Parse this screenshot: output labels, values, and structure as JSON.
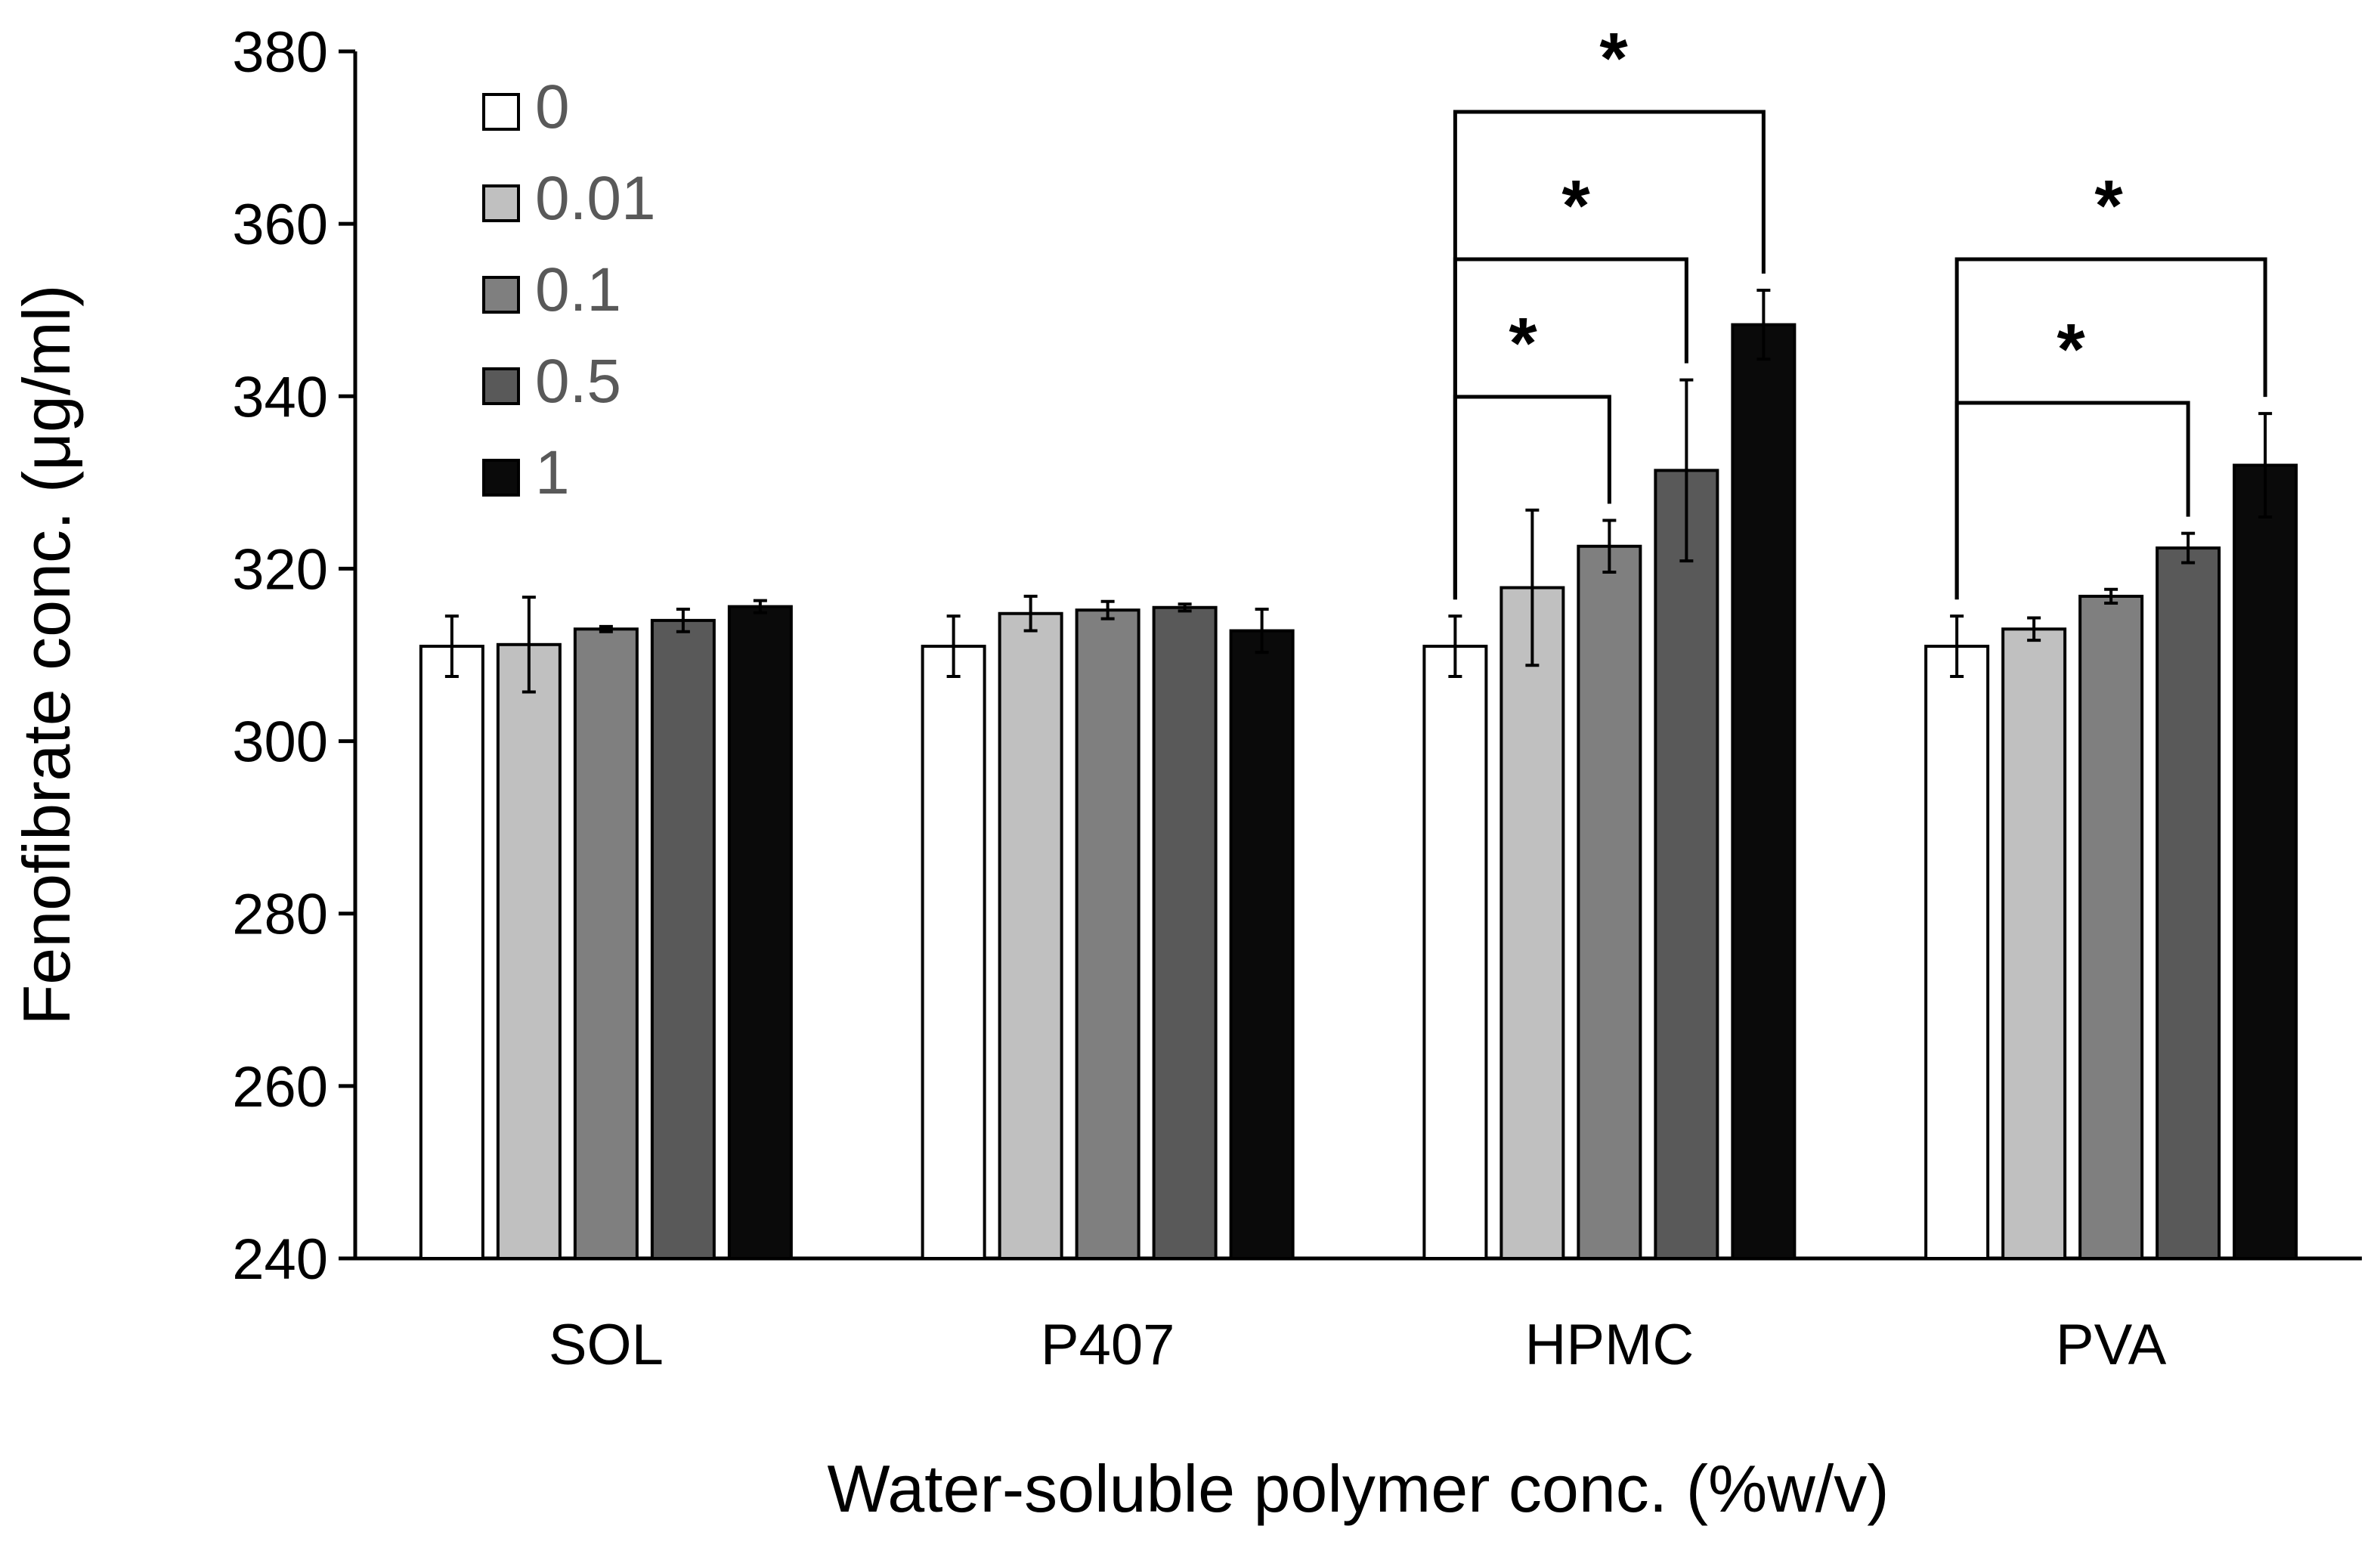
{
  "chart_data": {
    "type": "bar",
    "title": "",
    "xlabel": "Water-soluble polymer conc. (%w/v)",
    "ylabel": "Fenofibrate conc. (μg/ml)",
    "ylim": [
      240,
      380
    ],
    "yticks": [
      240,
      260,
      280,
      300,
      320,
      340,
      360,
      380
    ],
    "grid": false,
    "legend_position": "top-left",
    "categories": [
      "SOL",
      "P407",
      "HPMC",
      "PVA"
    ],
    "series": [
      {
        "name": "0",
        "color": "#ffffff",
        "values": [
          311,
          311,
          311,
          311
        ],
        "errors": [
          3.5,
          3.5,
          3.5,
          3.5
        ]
      },
      {
        "name": "0.01",
        "color": "#c0c0c0",
        "values": [
          311.2,
          314.8,
          317.8,
          313.0
        ],
        "errors": [
          5.5,
          2.0,
          9.0,
          1.3
        ]
      },
      {
        "name": "0.1",
        "color": "#7f7f7f",
        "values": [
          313.0,
          315.2,
          322.6,
          316.8
        ],
        "errors": [
          0.3,
          1.0,
          3.0,
          0.8
        ]
      },
      {
        "name": "0.5",
        "color": "#595959",
        "values": [
          314.0,
          315.5,
          331.4,
          322.4
        ],
        "errors": [
          1.3,
          0.4,
          10.5,
          1.7
        ]
      },
      {
        "name": "1",
        "color": "#0a0a0a",
        "values": [
          315.6,
          312.8,
          348.3,
          332.0
        ],
        "errors": [
          0.7,
          2.5,
          4.0,
          6.0
        ]
      }
    ],
    "significance": [
      {
        "category": "HPMC",
        "from": "0",
        "to": "0.1",
        "label": "*"
      },
      {
        "category": "HPMC",
        "from": "0",
        "to": "0.5",
        "label": "*"
      },
      {
        "category": "HPMC",
        "from": "0",
        "to": "1",
        "label": "*"
      },
      {
        "category": "PVA",
        "from": "0",
        "to": "0.5",
        "label": "*"
      },
      {
        "category": "PVA",
        "from": "0",
        "to": "1",
        "label": "*"
      }
    ]
  }
}
